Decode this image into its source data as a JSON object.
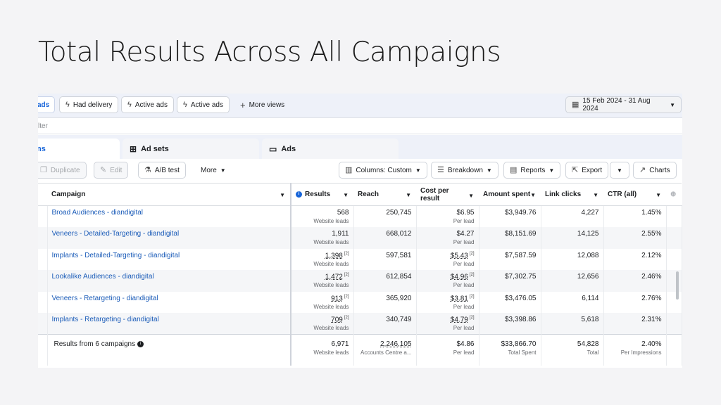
{
  "slide": {
    "title": "Total Results Across All Campaigns"
  },
  "topbar": {
    "views_tab": "ads",
    "pills": [
      "Had delivery",
      "Active ads",
      "Active ads"
    ],
    "more_views": "More views",
    "date_range": "15 Feb 2024 - 31 Aug 2024"
  },
  "filter": {
    "placeholder": "lter"
  },
  "tabs": {
    "campaigns": "ns",
    "ad_sets": "Ad sets",
    "ads": "Ads"
  },
  "toolbar": {
    "duplicate": "Duplicate",
    "edit": "Edit",
    "ab_test": "A/B test",
    "more": "More",
    "columns": "Columns: Custom",
    "breakdown": "Breakdown",
    "reports": "Reports",
    "export": "Export",
    "charts": "Charts"
  },
  "table": {
    "headers": {
      "campaign": "Campaign",
      "results": "Results",
      "reach": "Reach",
      "cost_per_result": "Cost per result",
      "amount_spent": "Amount spent",
      "link_clicks": "Link clicks",
      "ctr": "CTR (all)"
    },
    "rows": [
      {
        "campaign": "Broad Audiences - diandigital",
        "results": "568",
        "results_sub": "Website leads",
        "reach": "250,745",
        "cost": "$6.95",
        "cost_sub": "Per lead",
        "spent": "$3,949.76",
        "clicks": "4,227",
        "ctr": "1.45%"
      },
      {
        "campaign": "Veneers - Detailed-Targeting - diandigital",
        "results": "1,911",
        "results_sub": "Website leads",
        "reach": "668,012",
        "cost": "$4.27",
        "cost_sub": "Per lead",
        "spent": "$8,151.69",
        "clicks": "14,125",
        "ctr": "2.55%"
      },
      {
        "campaign": "Implants - Detailed-Targeting - diandigital",
        "results": "1,398",
        "results_sup": "[2]",
        "results_sub": "Website leads",
        "reach": "597,581",
        "cost": "$5.43",
        "cost_sup": "[2]",
        "cost_sub": "Per lead",
        "spent": "$7,587.59",
        "clicks": "12,088",
        "ctr": "2.12%"
      },
      {
        "campaign": "Lookalike Audiences - diandigital",
        "results": "1,472",
        "results_sup": "[2]",
        "results_sub": "Website leads",
        "reach": "612,854",
        "cost": "$4.96",
        "cost_sup": "[2]",
        "cost_sub": "Per lead",
        "spent": "$7,302.75",
        "clicks": "12,656",
        "ctr": "2.46%"
      },
      {
        "campaign": "Veneers - Retargeting - diandigital",
        "results": "913",
        "results_sup": "[2]",
        "results_sub": "Website leads",
        "reach": "365,920",
        "cost": "$3.81",
        "cost_sup": "[2]",
        "cost_sub": "Per lead",
        "spent": "$3,476.05",
        "clicks": "6,114",
        "ctr": "2.76%"
      },
      {
        "campaign": "Implants - Retargeting - diandigital",
        "results": "709",
        "results_sup": "[2]",
        "results_sub": "Website leads",
        "reach": "340,749",
        "cost": "$4.79",
        "cost_sup": "[2]",
        "cost_sub": "Per lead",
        "spent": "$3,398.86",
        "clicks": "5,618",
        "ctr": "2.31%"
      }
    ],
    "total": {
      "label": "Results from 6 campaigns",
      "results": "6,971",
      "results_sub": "Website leads",
      "reach": "2,246,105",
      "reach_sub": "Accounts Centre a...",
      "cost": "$4.86",
      "cost_sub": "Per lead",
      "spent": "$33,866.70",
      "spent_sub": "Total Spent",
      "clicks": "54,828",
      "clicks_sub": "Total",
      "ctr": "2.40%",
      "ctr_sub": "Per Impressions"
    }
  }
}
